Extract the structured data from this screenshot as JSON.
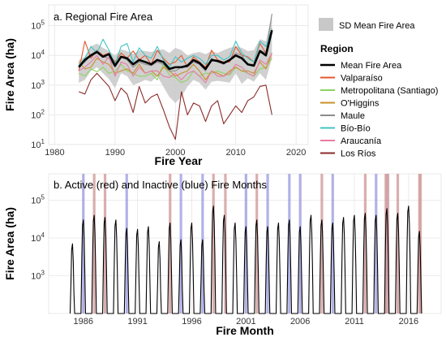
{
  "chart_data": [
    {
      "type": "line",
      "panel_title": "a. Regional Fire Area",
      "xlabel": "Fire Year",
      "ylabel": "Fire Area (ha)",
      "log_y": true,
      "xlim": [
        1979,
        2022
      ],
      "ylim": [
        10,
        500000
      ],
      "x_ticks": [
        1980,
        1990,
        2000,
        2010,
        2020
      ],
      "y_ticks": [
        {
          "value": 10,
          "label": "10^1"
        },
        {
          "value": 100,
          "label": "10^2"
        },
        {
          "value": 1000,
          "label": "10^3"
        },
        {
          "value": 10000,
          "label": "10^4"
        },
        {
          "value": 100000,
          "label": "10^5"
        }
      ],
      "grid": true,
      "sd_legend_label": "SD Mean Fire Area",
      "legend_title": "Region",
      "legend_placement": "right",
      "x": [
        1984,
        1985,
        1986,
        1987,
        1988,
        1989,
        1990,
        1991,
        1992,
        1993,
        1994,
        1995,
        1996,
        1997,
        1998,
        1999,
        2000,
        2001,
        2002,
        2003,
        2004,
        2005,
        2006,
        2007,
        2008,
        2009,
        2010,
        2011,
        2012,
        2013,
        2014,
        2015,
        2016
      ],
      "sd_band": {
        "lower": [
          1200,
          1500,
          3000,
          4000,
          2500,
          1600,
          800,
          2500,
          2000,
          1000,
          1200,
          1500,
          1300,
          2000,
          900,
          400,
          250,
          400,
          900,
          1500,
          1200,
          700,
          1300,
          1400,
          1300,
          1200,
          2500,
          1100,
          1700,
          1300,
          2500,
          1500,
          8000
        ],
        "upper": [
          7000,
          9000,
          20000,
          25000,
          18000,
          14000,
          10000,
          16000,
          14000,
          11000,
          15000,
          14000,
          13000,
          15000,
          16000,
          12000,
          18000,
          15000,
          10000,
          12000,
          13000,
          11000,
          14000,
          12000,
          15000,
          18000,
          20000,
          18000,
          14000,
          15000,
          35000,
          30000,
          250000
        ]
      },
      "series": [
        {
          "name": "Mean Fire Area",
          "color": "#000000",
          "bold": true,
          "values": [
            4000,
            7000,
            10000,
            13000,
            9000,
            11000,
            4500,
            9000,
            8000,
            5000,
            7000,
            6000,
            5000,
            7000,
            6000,
            3500,
            4000,
            4000,
            4500,
            7000,
            5500,
            3500,
            7000,
            6500,
            5500,
            7000,
            10000,
            8000,
            5000,
            4500,
            14000,
            10000,
            70000
          ]
        },
        {
          "name": "Valparaíso",
          "color": "#e4572e",
          "values": [
            3000,
            30000,
            8000,
            15000,
            10000,
            12000,
            6000,
            12000,
            8000,
            14000,
            7000,
            10000,
            5000,
            15000,
            8000,
            5000,
            6000,
            10000,
            4000,
            9000,
            6000,
            4000,
            15000,
            7000,
            6000,
            6000,
            20000,
            10000,
            9000,
            6000,
            25000,
            12000,
            60000
          ]
        },
        {
          "name": "Metropolitana (Santiago)",
          "color": "#8dd35f",
          "values": [
            2500,
            2000,
            3500,
            2800,
            4000,
            2500,
            3000,
            5000,
            3000,
            2500,
            2000,
            2000,
            2500,
            1500,
            5000,
            2200,
            1800,
            1200,
            1500,
            3000,
            2000,
            2500,
            2500,
            3000,
            2500,
            2200,
            4000,
            3000,
            2500,
            2000,
            3500,
            4000,
            8000
          ]
        },
        {
          "name": "O'Higgins",
          "color": "#c8902a",
          "values": [
            6000,
            3500,
            4000,
            8000,
            6000,
            5000,
            2500,
            3000,
            3500,
            2500,
            5000,
            2500,
            3000,
            2000,
            4000,
            3000,
            2000,
            2500,
            3000,
            5000,
            3000,
            1500,
            3000,
            2500,
            2000,
            3000,
            4000,
            3000,
            3000,
            2500,
            6000,
            3500,
            12000
          ]
        },
        {
          "name": "Maule",
          "color": "#8c8c8c",
          "values": [
            5000,
            6000,
            10000,
            15000,
            9000,
            8000,
            4000,
            9000,
            7000,
            4000,
            6000,
            5000,
            4500,
            6000,
            5000,
            3000,
            3000,
            4000,
            4000,
            6000,
            5000,
            3000,
            8000,
            6000,
            5000,
            7000,
            12000,
            10000,
            5000,
            5000,
            15000,
            12000,
            250000
          ]
        },
        {
          "name": "Bío-Bío",
          "color": "#40c4c4",
          "values": [
            4500,
            8000,
            20000,
            12000,
            35000,
            15000,
            5000,
            20000,
            25000,
            6000,
            18000,
            10000,
            8000,
            20000,
            7000,
            4000,
            9000,
            6000,
            8000,
            10000,
            8000,
            5000,
            10000,
            10000,
            7000,
            9000,
            30000,
            12000,
            8000,
            6000,
            30000,
            20000,
            80000
          ]
        },
        {
          "name": "Araucanía",
          "color": "#e87ba4",
          "values": [
            3000,
            4000,
            6000,
            10000,
            5000,
            9000,
            2000,
            6000,
            5000,
            2000,
            4000,
            2500,
            3000,
            3000,
            2000,
            1800,
            2500,
            1500,
            2500,
            3000,
            2000,
            1200,
            3000,
            2000,
            2000,
            2500,
            5000,
            4000,
            2500,
            2000,
            7000,
            5000,
            12000
          ]
        },
        {
          "name": "Los Ríos",
          "color": "#8b2a2a",
          "values": [
            600,
            500,
            1500,
            2500,
            1500,
            900,
            300,
            800,
            500,
            120,
            900,
            250,
            400,
            500,
            150,
            40,
            15,
            600,
            100,
            250,
            200,
            60,
            200,
            300,
            50,
            100,
            200,
            120,
            300,
            400,
            900,
            1000,
            100
          ]
        }
      ]
    },
    {
      "type": "line",
      "panel_title": "b. Active (red) and Inactive (blue) Fire Months",
      "xlabel": "Fire Month",
      "ylabel": "Fire Area (ha)",
      "log_y": true,
      "xlim": [
        1982.8,
        2019
      ],
      "ylim": [
        100,
        500000
      ],
      "x_ticks": [
        1986,
        1991,
        1996,
        2001,
        2006,
        2011,
        2016
      ],
      "y_ticks": [
        {
          "value": 1000,
          "label": "10^3"
        },
        {
          "value": 10000,
          "label": "10^4"
        },
        {
          "value": 100000,
          "label": "10^5"
        }
      ],
      "grid": true,
      "active_color": "#d4a0a0",
      "inactive_color": "#9898e0",
      "active_months": [
        1987.0,
        1988.0,
        1994.0,
        1998.0,
        1999.1,
        2002.0,
        2008.0,
        2012.0,
        2013.9,
        2014.1,
        2015.0,
        2017.0,
        2017.1
      ],
      "inactive_months": [
        1986.0,
        1990.0,
        1995.0,
        1997.0,
        2001.0,
        2003.0,
        2005.0,
        2006.0,
        2009.0,
        2013.0,
        2014.0
      ],
      "season_years": [
        1985,
        1986,
        1987,
        1988,
        1989,
        1990,
        1991,
        1992,
        1993,
        1994,
        1995,
        1996,
        1997,
        1998,
        1999,
        2000,
        2001,
        2002,
        2003,
        2004,
        2005,
        2006,
        2007,
        2008,
        2009,
        2010,
        2011,
        2012,
        2013,
        2014,
        2015,
        2016,
        2017
      ],
      "season_peaks": [
        7000,
        30000,
        40000,
        35000,
        30000,
        18000,
        17000,
        20000,
        8000,
        25000,
        9000,
        25000,
        9000,
        70000,
        40000,
        25000,
        20000,
        30000,
        20000,
        25000,
        30000,
        20000,
        40000,
        30000,
        25000,
        35000,
        40000,
        45000,
        40000,
        60000,
        45000,
        70000,
        15000
      ]
    }
  ]
}
